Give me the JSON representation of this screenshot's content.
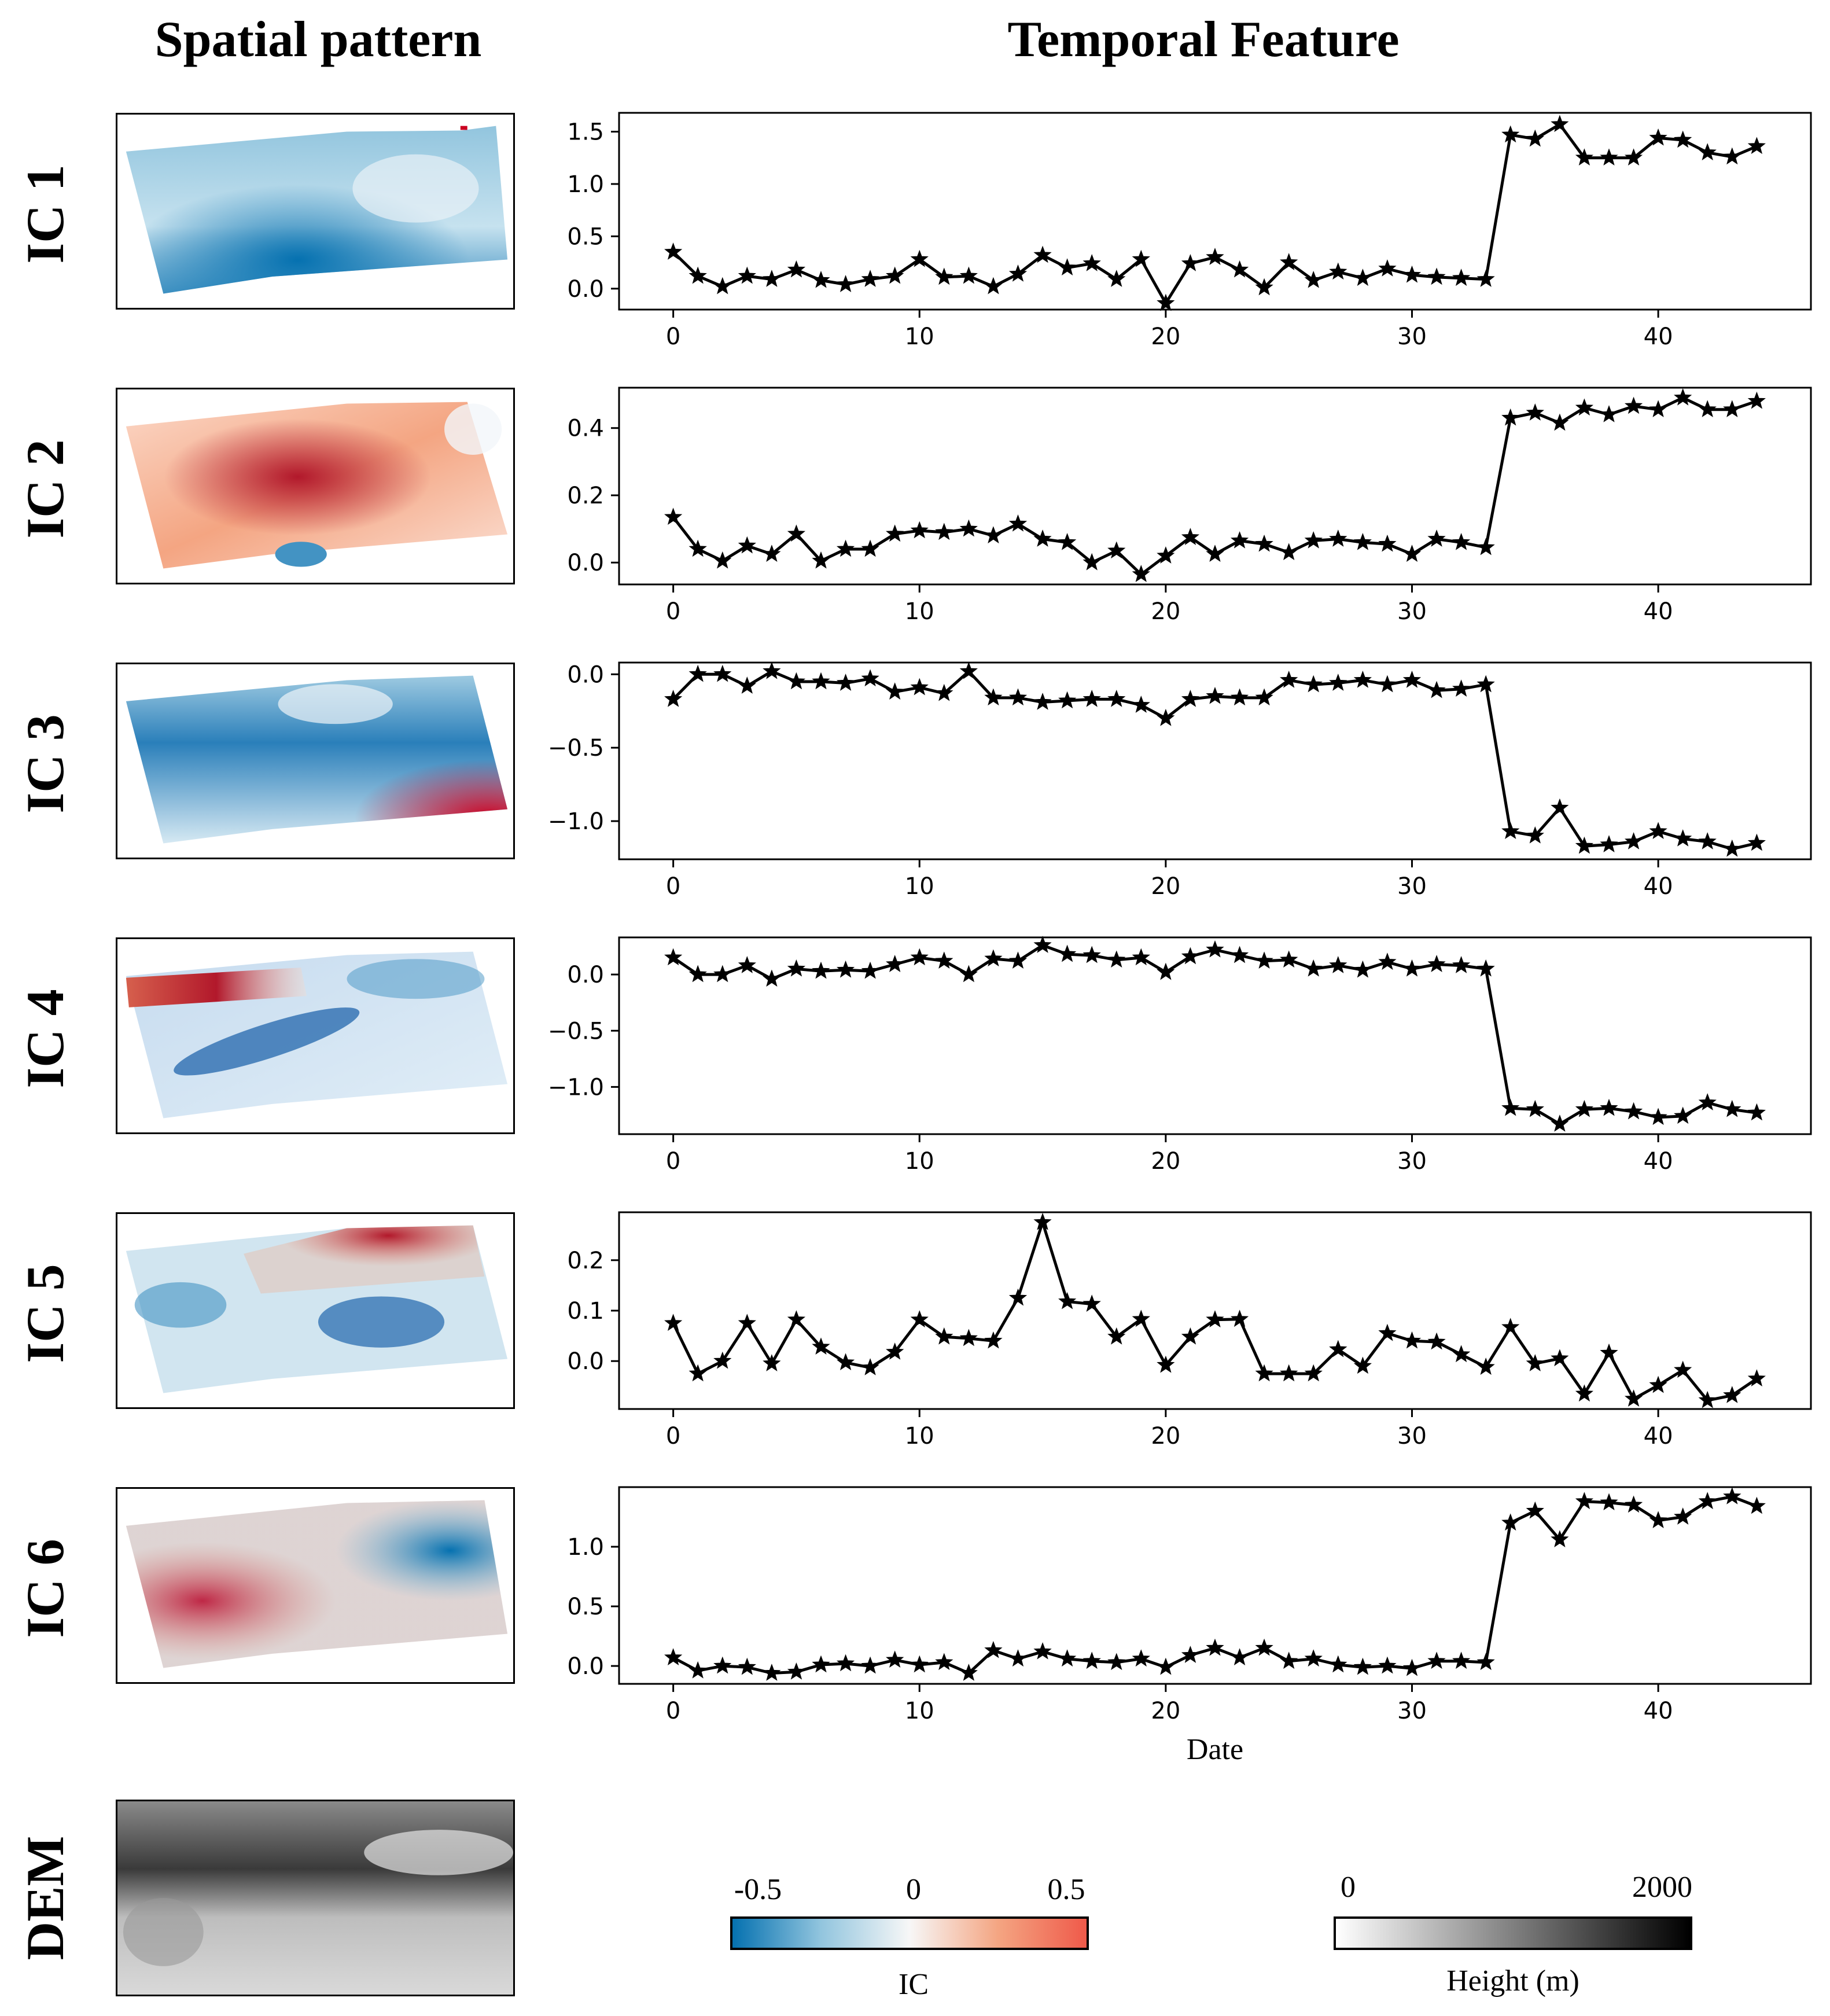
{
  "headers": {
    "spatial": "Spatial pattern",
    "temporal": "Temporal Feature"
  },
  "row_labels": [
    "IC 1",
    "IC 2",
    "IC 3",
    "IC 4",
    "IC 5",
    "IC 6",
    "DEM"
  ],
  "colors": {
    "ic_negative": "#0571b0",
    "ic_zero": "#f7f7f7",
    "ic_positive": "#ca0020",
    "height_low": "#ffffff",
    "height_high": "#000000",
    "line": "#000000"
  },
  "colorbars": {
    "ic": {
      "label": "IC",
      "ticks": [
        "-0.5",
        "0",
        "0.5"
      ]
    },
    "height": {
      "label": "Height (m)",
      "ticks": [
        "0",
        "2000"
      ]
    }
  },
  "chart_data": [
    {
      "type": "line",
      "series_label": "IC 1",
      "xlabel": "",
      "ylabel": "",
      "xlim": [
        -2.2,
        46.2
      ],
      "ylim": [
        -0.2,
        1.68
      ],
      "xticks": [
        0,
        10,
        20,
        30,
        40
      ],
      "yticks": [
        0.0,
        0.5,
        1.0,
        1.5
      ],
      "ytick_labels": [
        "0.0",
        "0.5",
        "1.0",
        "1.5"
      ],
      "marker": "star",
      "x": [
        0,
        1,
        2,
        3,
        4,
        5,
        6,
        7,
        8,
        9,
        10,
        11,
        12,
        13,
        14,
        15,
        16,
        17,
        18,
        19,
        20,
        21,
        22,
        23,
        24,
        25,
        26,
        27,
        28,
        29,
        30,
        31,
        32,
        33,
        34,
        35,
        36,
        37,
        38,
        39,
        40,
        41,
        42,
        43,
        44
      ],
      "y": [
        0.35,
        0.12,
        0.02,
        0.12,
        0.09,
        0.18,
        0.08,
        0.04,
        0.09,
        0.12,
        0.28,
        0.11,
        0.12,
        0.02,
        0.14,
        0.32,
        0.2,
        0.24,
        0.09,
        0.28,
        -0.14,
        0.24,
        0.3,
        0.18,
        0.01,
        0.25,
        0.08,
        0.16,
        0.1,
        0.19,
        0.13,
        0.11,
        0.1,
        0.09,
        1.47,
        1.43,
        1.57,
        1.25,
        1.25,
        1.25,
        1.44,
        1.42,
        1.3,
        1.26,
        1.36
      ]
    },
    {
      "type": "line",
      "series_label": "IC 2",
      "xlabel": "",
      "ylabel": "",
      "xlim": [
        -2.2,
        46.2
      ],
      "ylim": [
        -0.065,
        0.52
      ],
      "xticks": [
        0,
        10,
        20,
        30,
        40
      ],
      "yticks": [
        0.0,
        0.2,
        0.4
      ],
      "ytick_labels": [
        "0.0",
        "0.2",
        "0.4"
      ],
      "marker": "star",
      "x": [
        0,
        1,
        2,
        3,
        4,
        5,
        6,
        7,
        8,
        9,
        10,
        11,
        12,
        13,
        14,
        15,
        16,
        17,
        18,
        19,
        20,
        21,
        22,
        23,
        24,
        25,
        26,
        27,
        28,
        29,
        30,
        31,
        32,
        33,
        34,
        35,
        36,
        37,
        38,
        39,
        40,
        41,
        42,
        43,
        44
      ],
      "y": [
        0.135,
        0.04,
        0.005,
        0.05,
        0.025,
        0.085,
        0.005,
        0.04,
        0.04,
        0.085,
        0.095,
        0.09,
        0.1,
        0.08,
        0.115,
        0.07,
        0.06,
        0.0,
        0.035,
        -0.035,
        0.02,
        0.075,
        0.025,
        0.065,
        0.055,
        0.03,
        0.065,
        0.07,
        0.06,
        0.055,
        0.025,
        0.07,
        0.06,
        0.045,
        0.43,
        0.445,
        0.415,
        0.46,
        0.44,
        0.465,
        0.455,
        0.49,
        0.455,
        0.455,
        0.48
      ]
    },
    {
      "type": "line",
      "series_label": "IC 3",
      "xlabel": "",
      "ylabel": "",
      "xlim": [
        -2.2,
        46.2
      ],
      "ylim": [
        -1.26,
        0.08
      ],
      "xticks": [
        0,
        10,
        20,
        30,
        40
      ],
      "yticks": [
        -1.0,
        -0.5,
        0.0
      ],
      "ytick_labels": [
        "−1.0",
        "−0.5",
        "0.0"
      ],
      "marker": "star",
      "x": [
        0,
        1,
        2,
        3,
        4,
        5,
        6,
        7,
        8,
        9,
        10,
        11,
        12,
        13,
        14,
        15,
        16,
        17,
        18,
        19,
        20,
        21,
        22,
        23,
        24,
        25,
        26,
        27,
        28,
        29,
        30,
        31,
        32,
        33,
        34,
        35,
        36,
        37,
        38,
        39,
        40,
        41,
        42,
        43,
        44
      ],
      "y": [
        -0.17,
        0.0,
        0.0,
        -0.08,
        0.02,
        -0.05,
        -0.05,
        -0.06,
        -0.03,
        -0.12,
        -0.09,
        -0.13,
        0.02,
        -0.16,
        -0.16,
        -0.19,
        -0.18,
        -0.17,
        -0.17,
        -0.21,
        -0.3,
        -0.17,
        -0.15,
        -0.16,
        -0.16,
        -0.04,
        -0.07,
        -0.06,
        -0.04,
        -0.07,
        -0.04,
        -0.11,
        -0.1,
        -0.07,
        -1.07,
        -1.1,
        -0.91,
        -1.17,
        -1.16,
        -1.14,
        -1.07,
        -1.12,
        -1.14,
        -1.19,
        -1.15
      ]
    },
    {
      "type": "line",
      "series_label": "IC 4",
      "xlabel": "",
      "ylabel": "",
      "xlim": [
        -2.2,
        46.2
      ],
      "ylim": [
        -1.42,
        0.33
      ],
      "xticks": [
        0,
        10,
        20,
        30,
        40
      ],
      "yticks": [
        -1.0,
        -0.5,
        0.0
      ],
      "ytick_labels": [
        "−1.0",
        "−0.5",
        "0.0"
      ],
      "marker": "star",
      "x": [
        0,
        1,
        2,
        3,
        4,
        5,
        6,
        7,
        8,
        9,
        10,
        11,
        12,
        13,
        14,
        15,
        16,
        17,
        18,
        19,
        20,
        21,
        22,
        23,
        24,
        25,
        26,
        27,
        28,
        29,
        30,
        31,
        32,
        33,
        34,
        35,
        36,
        37,
        38,
        39,
        40,
        41,
        42,
        43,
        44
      ],
      "y": [
        0.15,
        0.0,
        0.0,
        0.08,
        -0.04,
        0.05,
        0.03,
        0.04,
        0.03,
        0.09,
        0.15,
        0.12,
        0.0,
        0.14,
        0.12,
        0.26,
        0.18,
        0.17,
        0.13,
        0.15,
        0.02,
        0.16,
        0.22,
        0.17,
        0.12,
        0.13,
        0.05,
        0.08,
        0.04,
        0.11,
        0.05,
        0.09,
        0.08,
        0.05,
        -1.19,
        -1.2,
        -1.33,
        -1.2,
        -1.19,
        -1.22,
        -1.27,
        -1.26,
        -1.14,
        -1.2,
        -1.23
      ]
    },
    {
      "type": "line",
      "series_label": "IC 5",
      "xlabel": "",
      "ylabel": "",
      "xlim": [
        -2.2,
        46.2
      ],
      "ylim": [
        -0.095,
        0.295
      ],
      "xticks": [
        0,
        10,
        20,
        30,
        40
      ],
      "yticks": [
        0.0,
        0.1,
        0.2
      ],
      "ytick_labels": [
        "0.0",
        "0.1",
        "0.2"
      ],
      "marker": "star",
      "x": [
        0,
        1,
        2,
        3,
        4,
        5,
        6,
        7,
        8,
        9,
        10,
        11,
        12,
        13,
        14,
        15,
        16,
        17,
        18,
        19,
        20,
        21,
        22,
        23,
        24,
        25,
        26,
        27,
        28,
        29,
        30,
        31,
        32,
        33,
        34,
        35,
        36,
        37,
        38,
        39,
        40,
        41,
        42,
        43,
        44
      ],
      "y": [
        0.075,
        -0.025,
        0.0,
        0.075,
        -0.005,
        0.082,
        0.028,
        -0.003,
        -0.013,
        0.018,
        0.082,
        0.048,
        0.045,
        0.04,
        0.125,
        0.275,
        0.118,
        0.113,
        0.048,
        0.083,
        -0.008,
        0.048,
        0.082,
        0.083,
        -0.025,
        -0.025,
        -0.025,
        0.023,
        -0.01,
        0.055,
        0.04,
        0.038,
        0.013,
        -0.012,
        0.067,
        -0.005,
        0.005,
        -0.065,
        0.016,
        -0.075,
        -0.048,
        -0.018,
        -0.078,
        -0.068,
        -0.035
      ]
    },
    {
      "type": "line",
      "series_label": "IC 6",
      "xlabel": "Date",
      "ylabel": "",
      "xlim": [
        -2.2,
        46.2
      ],
      "ylim": [
        -0.15,
        1.5
      ],
      "xticks": [
        0,
        10,
        20,
        30,
        40
      ],
      "yticks": [
        0.0,
        0.5,
        1.0
      ],
      "ytick_labels": [
        "0.0",
        "0.5",
        "1.0"
      ],
      "marker": "star",
      "x": [
        0,
        1,
        2,
        3,
        4,
        5,
        6,
        7,
        8,
        9,
        10,
        11,
        12,
        13,
        14,
        15,
        16,
        17,
        18,
        19,
        20,
        21,
        22,
        23,
        24,
        25,
        26,
        27,
        28,
        29,
        30,
        31,
        32,
        33,
        34,
        35,
        36,
        37,
        38,
        39,
        40,
        41,
        42,
        43,
        44
      ],
      "y": [
        0.07,
        -0.04,
        0.0,
        -0.01,
        -0.06,
        -0.05,
        0.01,
        0.02,
        0.0,
        0.05,
        0.01,
        0.03,
        -0.06,
        0.13,
        0.06,
        0.12,
        0.06,
        0.04,
        0.03,
        0.06,
        -0.01,
        0.09,
        0.15,
        0.07,
        0.15,
        0.04,
        0.06,
        0.01,
        -0.01,
        0.0,
        -0.02,
        0.04,
        0.04,
        0.03,
        1.2,
        1.3,
        1.06,
        1.38,
        1.37,
        1.35,
        1.22,
        1.25,
        1.38,
        1.42,
        1.34
      ]
    }
  ]
}
